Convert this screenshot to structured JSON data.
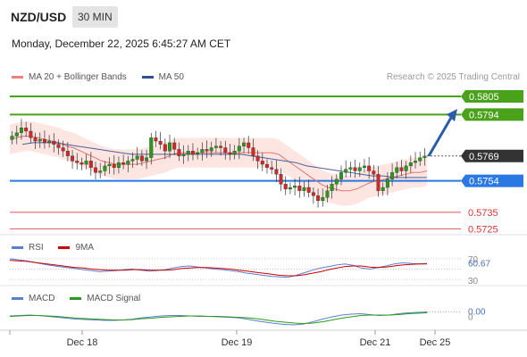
{
  "header": {
    "pair": "NZD/USD",
    "timeframe": "30 MIN",
    "datetime": "Monday, December 22, 2025 6:45:27 AM CET",
    "credit": "Research © 2025 Trading Central"
  },
  "legend_price": [
    {
      "label": "MA 20 + Bollinger Bands",
      "color": "#f08080"
    },
    {
      "label": "MA 50",
      "color": "#2f4f8f"
    }
  ],
  "legend_rsi": [
    {
      "label": "RSI",
      "color": "#5b7fcf"
    },
    {
      "label": "9MA",
      "color": "#cc0000"
    }
  ],
  "legend_macd": [
    {
      "label": "MACD",
      "color": "#5b7fcf"
    },
    {
      "label": "MACD Signal",
      "color": "#2a9a1a"
    }
  ],
  "chart_data": [
    {
      "type": "candlestick",
      "x_labels": [
        "Dec 18",
        "Dec 19",
        "Dec 21",
        "Dec 25"
      ],
      "ylim": [
        0.5722,
        0.5812
      ],
      "levels": [
        {
          "value": 0.5805,
          "label": "0.5805",
          "color": "#4aa21a",
          "kind": "resistance"
        },
        {
          "value": 0.5794,
          "label": "0.5794",
          "color": "#4aa21a",
          "kind": "resistance"
        },
        {
          "value": 0.5769,
          "label": "0.5769",
          "color": "#333333",
          "kind": "last"
        },
        {
          "value": 0.5754,
          "label": "0.5754",
          "color": "#2a78e4",
          "kind": "pivot"
        },
        {
          "value": 0.5735,
          "label": "0.5735",
          "color": "#e05555",
          "kind": "support"
        },
        {
          "value": 0.5725,
          "label": "0.5725",
          "color": "#e05555",
          "kind": "support"
        }
      ],
      "arrow": {
        "from": 0.5769,
        "to": 0.5799,
        "color": "#2a5ca8"
      },
      "close_path": [
        0.5781,
        0.5783,
        0.5786,
        0.5784,
        0.578,
        0.5778,
        0.5779,
        0.5777,
        0.5778,
        0.5776,
        0.5774,
        0.5772,
        0.5769,
        0.5766,
        0.5765,
        0.5764,
        0.5766,
        0.5762,
        0.5759,
        0.576,
        0.5763,
        0.5764,
        0.5762,
        0.5765,
        0.5764,
        0.5766,
        0.5767,
        0.5769,
        0.5766,
        0.5768,
        0.578,
        0.5778,
        0.5776,
        0.5772,
        0.5777,
        0.5773,
        0.5769,
        0.577,
        0.5772,
        0.577,
        0.5771,
        0.5773,
        0.5772,
        0.5774,
        0.5775,
        0.5774,
        0.5771,
        0.577,
        0.5772,
        0.5775,
        0.5777,
        0.5774,
        0.5769,
        0.5766,
        0.5764,
        0.5762,
        0.5761,
        0.5758,
        0.5752,
        0.5749,
        0.575,
        0.5751,
        0.5748,
        0.575,
        0.5747,
        0.5745,
        0.5742,
        0.5744,
        0.5748,
        0.5752,
        0.5755,
        0.5759,
        0.5761,
        0.5762,
        0.576,
        0.5762,
        0.5763,
        0.576,
        0.5758,
        0.5748,
        0.575,
        0.5755,
        0.5759,
        0.5762,
        0.576,
        0.5763,
        0.5765,
        0.5766,
        0.5768,
        0.5769
      ],
      "ma20_path": [
        0.5779,
        0.578,
        0.5781,
        0.5781,
        0.578,
        0.5779,
        0.5778,
        0.5777,
        0.5775,
        0.5774,
        0.5772,
        0.577,
        0.5768,
        0.5766,
        0.5765,
        0.5764,
        0.5764,
        0.5764,
        0.5764,
        0.5765,
        0.5766,
        0.5767,
        0.5768,
        0.577,
        0.5771,
        0.5771,
        0.5771,
        0.5771,
        0.5771,
        0.5771,
        0.5771,
        0.5771,
        0.5771,
        0.5771,
        0.5771,
        0.5771,
        0.5771,
        0.5771,
        0.577,
        0.5767,
        0.5764,
        0.5761,
        0.5758,
        0.5755,
        0.5752,
        0.575,
        0.5749,
        0.5748,
        0.5748,
        0.5749,
        0.5751,
        0.5753,
        0.5754,
        0.5755,
        0.5756,
        0.5757,
        0.5758,
        0.5759,
        0.5759,
        0.576
      ],
      "ma50_path": [
        0.5776,
        0.5777,
        0.5777,
        0.5777,
        0.5776,
        0.5775,
        0.5774,
        0.5773,
        0.5772,
        0.5771,
        0.577,
        0.577,
        0.577,
        0.577,
        0.577,
        0.577,
        0.577,
        0.577,
        0.577,
        0.577,
        0.577,
        0.5769,
        0.5768,
        0.5767,
        0.5766,
        0.5765,
        0.5763,
        0.5762,
        0.5761,
        0.576,
        0.5759,
        0.5758,
        0.5757,
        0.5757,
        0.5756,
        0.5756,
        0.5756,
        0.5756
      ],
      "bb_half_width": 0.0009
    },
    {
      "type": "line",
      "name": "RSI",
      "ylim": [
        25,
        75
      ],
      "axis_labels": [
        "70",
        "60.67",
        "30"
      ],
      "last_value": "60.67",
      "rsi": [
        70,
        68,
        66,
        63,
        60,
        57,
        55,
        53,
        51,
        49,
        47,
        45,
        46,
        47,
        49,
        50,
        48,
        46,
        47,
        49,
        52,
        55,
        56,
        54,
        52,
        50,
        49,
        47,
        45,
        42,
        40,
        38,
        36,
        35,
        34,
        38,
        43,
        48,
        52,
        55,
        58,
        60,
        57,
        52,
        50,
        53,
        56,
        60,
        62,
        61,
        60,
        61
      ],
      "ma9": [
        67,
        66,
        65,
        63,
        61,
        59,
        57,
        55,
        53,
        52,
        50,
        49,
        48,
        48,
        48,
        49,
        49,
        48,
        48,
        48,
        49,
        51,
        52,
        53,
        53,
        52,
        51,
        50,
        48,
        46,
        44,
        42,
        40,
        38,
        37,
        37,
        39,
        42,
        45,
        49,
        52,
        55,
        56,
        56,
        54,
        53,
        54,
        56,
        58,
        59,
        60,
        60
      ]
    },
    {
      "type": "line",
      "name": "MACD",
      "ylim": [
        -0.0025,
        0.0025
      ],
      "axis_labels": [
        "0.00",
        "0"
      ],
      "last_value": "0.00",
      "macd": [
        0.0001,
        0.0002,
        0.0003,
        0.0002,
        0.0,
        -0.0002,
        -0.0004,
        -0.0006,
        -0.0007,
        -0.0008,
        -0.0009,
        -0.0009,
        -0.0008,
        -0.0006,
        -0.0003,
        -0.0001,
        0.0001,
        0.0002,
        0.0002,
        0.0001,
        0.0,
        0.0,
        -0.0001,
        -0.0002,
        -0.0003,
        -0.0006,
        -0.001,
        -0.0013,
        -0.0016,
        -0.0018,
        -0.0019,
        -0.0017,
        -0.0012,
        -0.0006,
        -0.0001,
        0.0003,
        0.0005,
        0.0006,
        0.0004,
        0.0002,
        0.0003,
        0.0006,
        0.0008,
        0.0009,
        0.001
      ],
      "signal": [
        0.0,
        0.0001,
        0.0002,
        0.0002,
        0.0001,
        0.0,
        -0.0002,
        -0.0004,
        -0.0005,
        -0.0006,
        -0.0007,
        -0.0008,
        -0.0008,
        -0.0007,
        -0.0005,
        -0.0004,
        -0.0002,
        -0.0001,
        0.0,
        0.0001,
        0.0001,
        0.0,
        0.0,
        -0.0001,
        -0.0002,
        -0.0003,
        -0.0005,
        -0.0008,
        -0.0011,
        -0.0013,
        -0.0015,
        -0.0016,
        -0.0015,
        -0.0012,
        -0.0008,
        -0.0004,
        -0.0001,
        0.0002,
        0.0003,
        0.0003,
        0.0003,
        0.0004,
        0.0006,
        0.0007,
        0.0008
      ]
    }
  ]
}
